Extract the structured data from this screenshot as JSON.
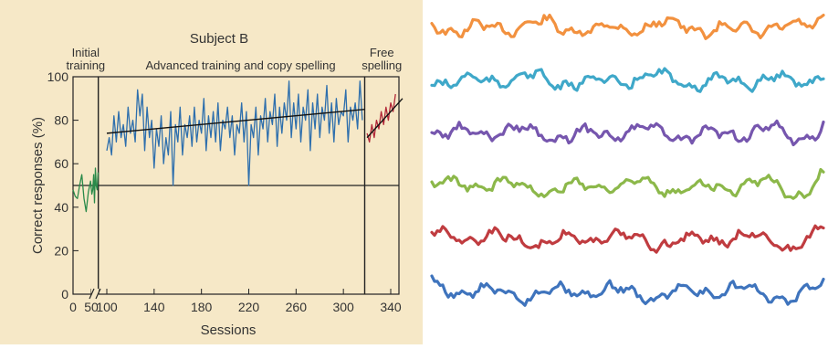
{
  "chart_data": [
    {
      "type": "line",
      "title": "Subject B",
      "xlabel": "Sessions",
      "ylabel": "Correct responses (%)",
      "ylim": [
        0,
        100
      ],
      "x_ticks": [
        0,
        50,
        100,
        140,
        180,
        220,
        260,
        300,
        340
      ],
      "x_tick_labels": [
        "0",
        "50",
        "100",
        "140",
        "180",
        "220",
        "260",
        "300",
        "340"
      ],
      "y_ticks": [
        0,
        20,
        40,
        60,
        80,
        100
      ],
      "axis_break_between": [
        50,
        100
      ],
      "phases": [
        {
          "name": "Initial training",
          "lines": [
            "Initial",
            "training"
          ],
          "start": 0,
          "end": 98
        },
        {
          "name": "Advanced training and copy spelling",
          "lines": [
            "Advanced training and copy spelling"
          ],
          "start": 98,
          "end": 318
        },
        {
          "name": "Free spelling",
          "lines": [
            "Free",
            "spelling"
          ],
          "start": 318,
          "end": 350
        }
      ],
      "reference_line": 50,
      "grid": false,
      "series": [
        {
          "color": "#2a8a4a",
          "x": [
            0,
            6,
            12,
            18,
            24,
            30,
            36,
            42,
            48,
            54,
            60,
            66,
            72,
            78,
            84,
            90,
            96
          ],
          "values": [
            48,
            45,
            44,
            50,
            55,
            44,
            38,
            47,
            52,
            46,
            48,
            55,
            42,
            58,
            50,
            48,
            56
          ]
        },
        {
          "color": "#2e6fad",
          "x": [
            100,
            102,
            104,
            106,
            108,
            110,
            112,
            114,
            116,
            118,
            120,
            122,
            124,
            126,
            128,
            130,
            132,
            134,
            136,
            138,
            140,
            142,
            144,
            146,
            148,
            150,
            152,
            154,
            156,
            158,
            160,
            162,
            164,
            166,
            168,
            170,
            172,
            174,
            176,
            178,
            180,
            182,
            184,
            186,
            188,
            190,
            192,
            194,
            196,
            198,
            200,
            202,
            204,
            206,
            208,
            210,
            212,
            214,
            216,
            218,
            220,
            222,
            224,
            226,
            228,
            230,
            232,
            234,
            236,
            238,
            240,
            242,
            244,
            246,
            248,
            250,
            252,
            254,
            256,
            258,
            260,
            262,
            264,
            266,
            268,
            270,
            272,
            274,
            276,
            278,
            280,
            282,
            284,
            286,
            288,
            290,
            292,
            294,
            296,
            298,
            300,
            302,
            304,
            306,
            308,
            310,
            312,
            314,
            316
          ],
          "values": [
            66,
            72,
            64,
            82,
            70,
            84,
            72,
            78,
            68,
            86,
            74,
            80,
            70,
            94,
            82,
            92,
            66,
            86,
            72,
            80,
            58,
            76,
            68,
            82,
            60,
            72,
            64,
            84,
            50,
            78,
            70,
            86,
            64,
            78,
            72,
            82,
            68,
            86,
            70,
            80,
            74,
            90,
            66,
            82,
            72,
            84,
            70,
            88,
            66,
            80,
            76,
            86,
            72,
            82,
            64,
            78,
            74,
            88,
            70,
            84,
            50,
            78,
            72,
            86,
            64,
            82,
            76,
            90,
            70,
            84,
            78,
            92,
            68,
            86,
            74,
            88,
            80,
            98,
            72,
            88,
            76,
            92,
            70,
            86,
            80,
            94,
            66,
            88,
            76,
            92,
            72,
            86,
            80,
            96,
            74,
            88,
            70,
            90,
            78,
            84,
            82,
            94,
            70,
            86,
            80,
            88,
            76,
            98,
            80
          ]
        },
        {
          "color": "#b22838",
          "x": [
            320,
            322,
            324,
            326,
            328,
            330,
            332,
            334,
            336,
            338,
            340,
            342,
            344
          ],
          "values": [
            74,
            70,
            78,
            72,
            80,
            76,
            84,
            78,
            86,
            80,
            88,
            84,
            92
          ]
        }
      ],
      "trend_lines": [
        {
          "x": [
            100,
            318
          ],
          "values": [
            74,
            85
          ]
        },
        {
          "x": [
            320,
            350
          ],
          "values": [
            72,
            90
          ]
        }
      ]
    },
    {
      "type": "line",
      "title": "",
      "xlabel": "",
      "ylabel": "",
      "axes": false,
      "series": [
        {
          "color": "#f2913f"
        },
        {
          "color": "#3fa8c9"
        },
        {
          "color": "#7656ae"
        },
        {
          "color": "#8cb84a"
        },
        {
          "color": "#c03c40"
        },
        {
          "color": "#3f74bd"
        }
      ]
    }
  ]
}
